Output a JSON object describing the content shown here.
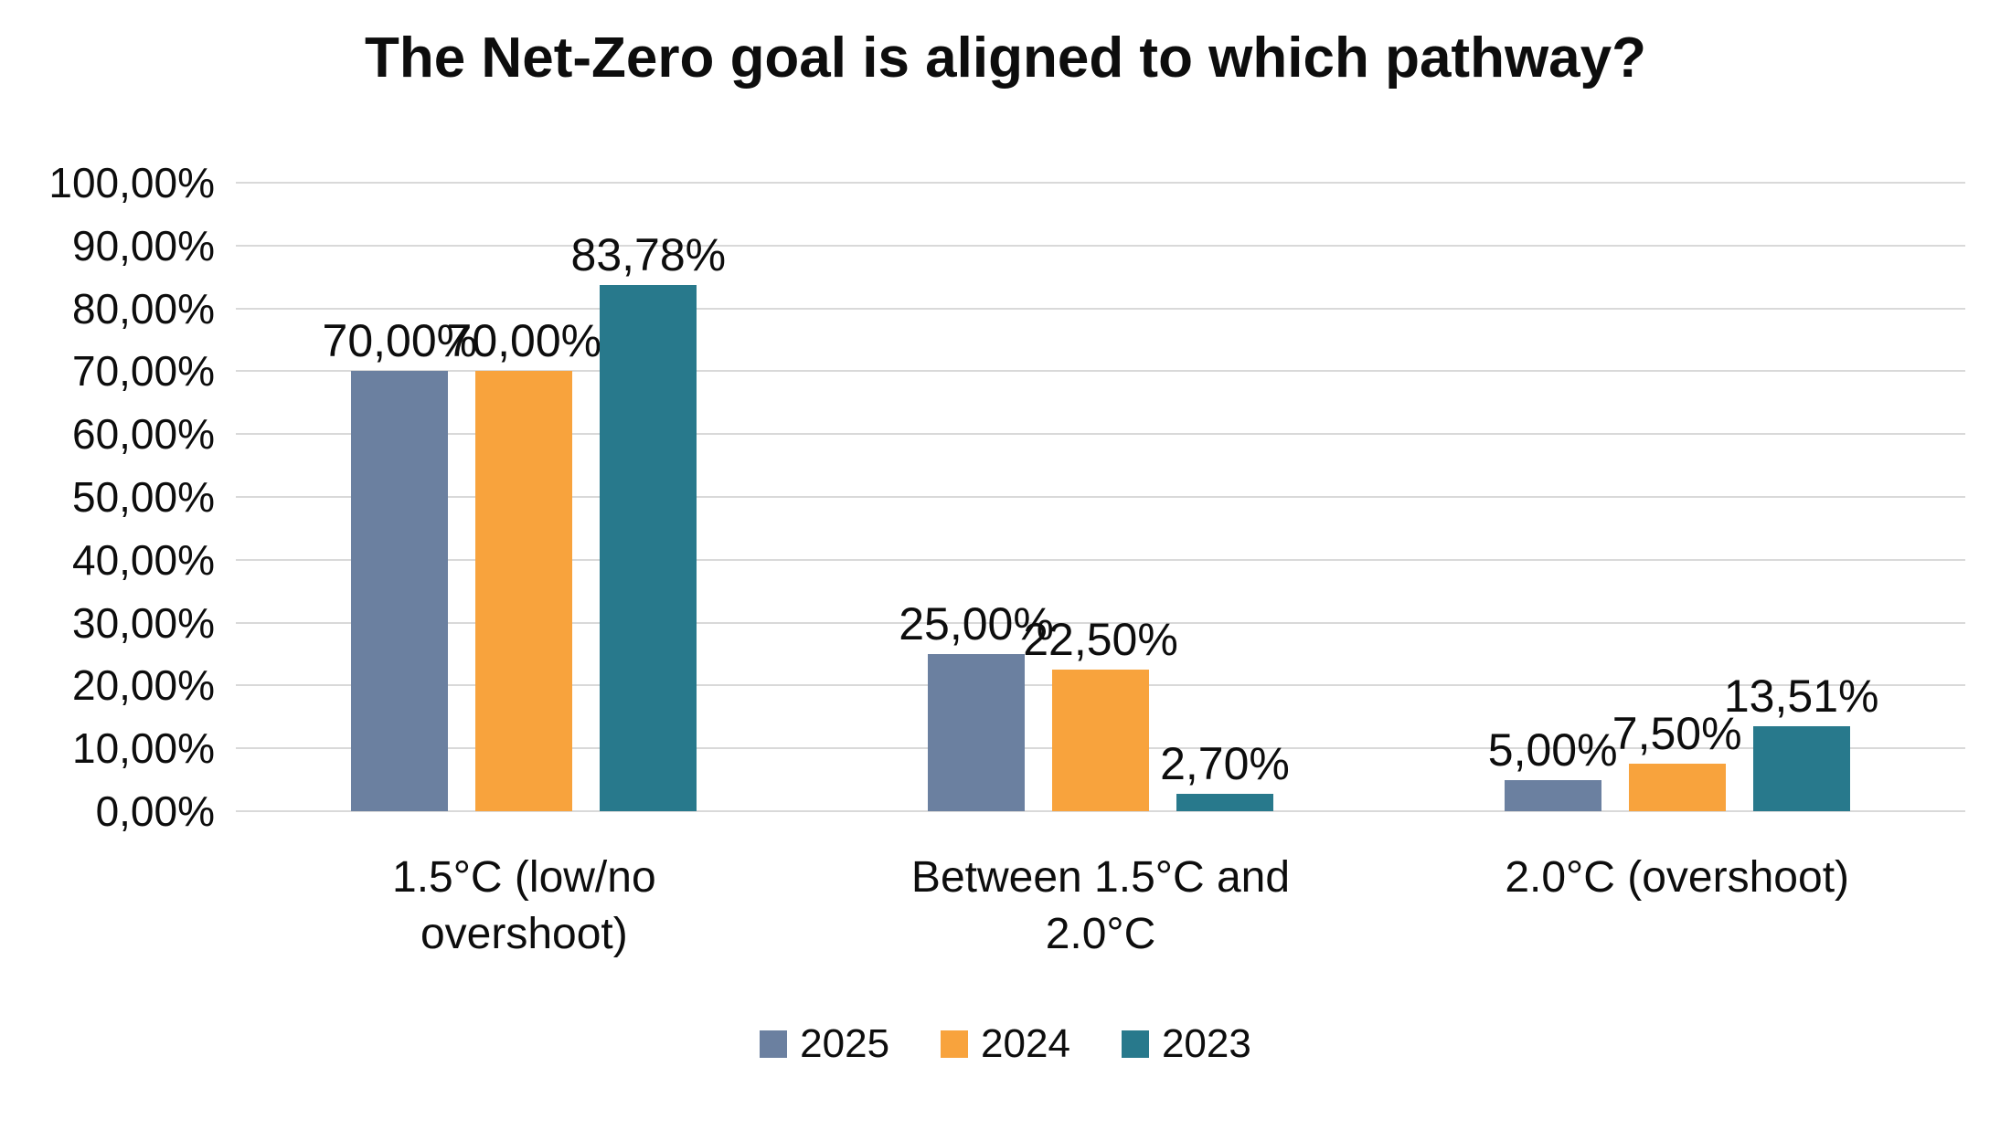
{
  "title": "The Net-Zero goal is aligned to which pathway?",
  "chart_data": {
    "type": "bar",
    "title": "The Net-Zero goal is aligned to which pathway?",
    "categories": [
      "1.5°C (low/no overshoot)",
      "Between 1.5°C and 2.0°C",
      "2.0°C (overshoot)"
    ],
    "series": [
      {
        "name": "2025",
        "color": "#6b80a0",
        "values": [
          70.0,
          25.0,
          5.0
        ],
        "labels": [
          "70,00%",
          "25,00%",
          "5,00%"
        ]
      },
      {
        "name": "2024",
        "color": "#f8a33d",
        "values": [
          70.0,
          22.5,
          7.5
        ],
        "labels": [
          "70,00%",
          "22,50%",
          "7,50%"
        ]
      },
      {
        "name": "2023",
        "color": "#28798c",
        "values": [
          83.78,
          2.7,
          13.51
        ],
        "labels": [
          "83,78%",
          "2,70%",
          "13,51%"
        ]
      }
    ],
    "xlabel": "",
    "ylabel": "",
    "ylim": [
      0,
      100
    ],
    "y_ticks": [
      "0,00%",
      "10,00%",
      "20,00%",
      "30,00%",
      "40,00%",
      "50,00%",
      "60,00%",
      "70,00%",
      "80,00%",
      "90,00%",
      "100,00%"
    ],
    "grid": true,
    "legend_position": "bottom",
    "legend_entries": [
      "2025",
      "2024",
      "2023"
    ]
  }
}
